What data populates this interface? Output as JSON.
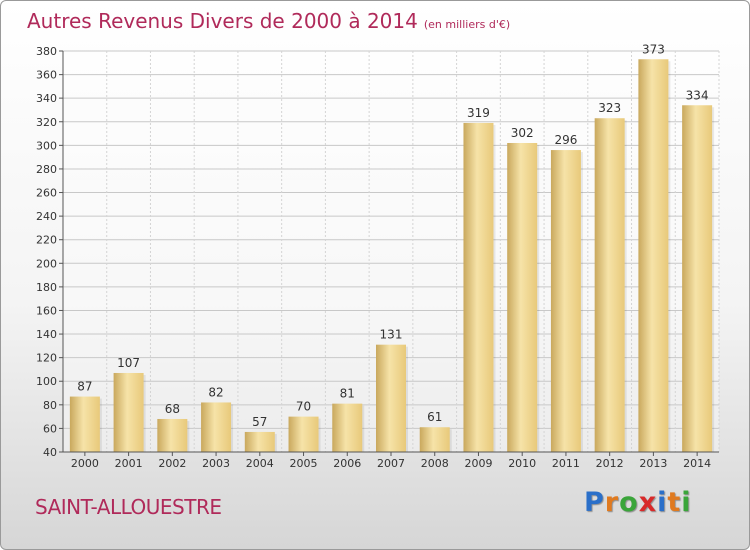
{
  "chart_data": {
    "type": "bar",
    "title": "Autres Revenus Divers de 2000 à 2014",
    "subtitle": "(en milliers d'€)",
    "categories": [
      "2000",
      "2001",
      "2002",
      "2003",
      "2004",
      "2005",
      "2006",
      "2007",
      "2008",
      "2009",
      "2010",
      "2011",
      "2012",
      "2013",
      "2014"
    ],
    "values": [
      87,
      107,
      68,
      82,
      57,
      70,
      81,
      131,
      61,
      319,
      302,
      296,
      323,
      373,
      334
    ],
    "ylim": [
      40,
      380
    ],
    "yticks": [
      40,
      60,
      80,
      100,
      120,
      140,
      160,
      180,
      200,
      220,
      240,
      260,
      280,
      300,
      320,
      340,
      360,
      380
    ],
    "grid": true,
    "bar_color": "#e8c97a",
    "bar_color_light": "#f6e3a8",
    "bar_color_dark": "#c9a85d"
  },
  "location": "SAINT-ALLOUESTRE",
  "logo": {
    "text": "Proxiti",
    "letters": [
      "P",
      "r",
      "o",
      "x",
      "i",
      "t",
      "i"
    ],
    "colors": [
      "#2a6fc9",
      "#e07a1f",
      "#3aa53a",
      "#d82a2a",
      "#2a6fc9",
      "#e07a1f",
      "#3aa53a"
    ]
  },
  "colors": {
    "title": "#b02a5a"
  }
}
